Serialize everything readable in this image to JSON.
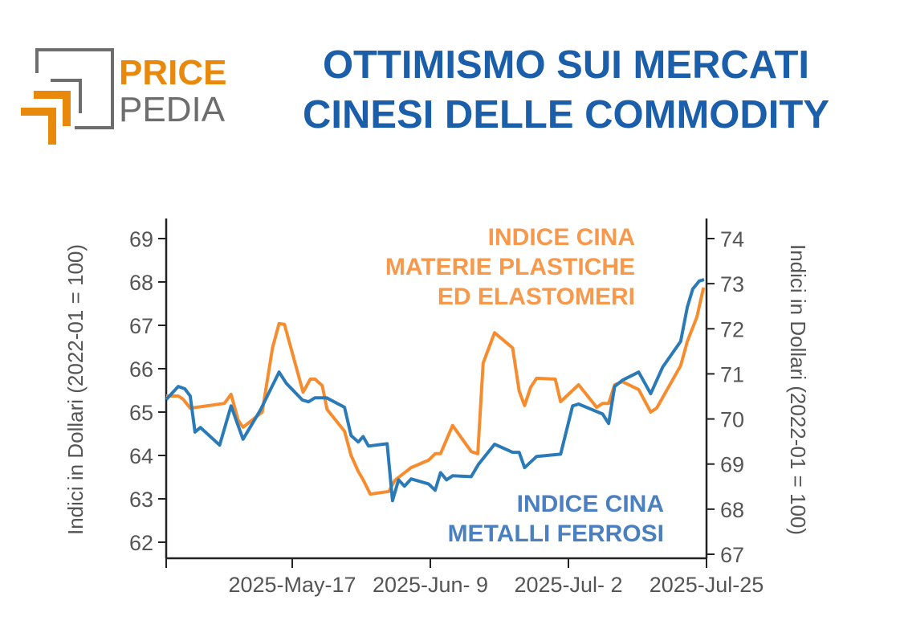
{
  "logo": {
    "line1": "PRICE",
    "line2": "PEDIA"
  },
  "title": {
    "line1": "OTTIMISMO SUI MERCATI",
    "line2": "CINESI DELLE COMMODITY"
  },
  "colors": {
    "title": "#1b5faa",
    "orange": "#f78c2e",
    "blue": "#2a7ab8",
    "orange_label": "#f7984a",
    "blue_label": "#4a7fc0",
    "axis": "#222222"
  },
  "chart_data": {
    "type": "line",
    "title": "",
    "x_unit": "days since 2025-Apr-26",
    "xlim": [
      0,
      90
    ],
    "x_ticks": [
      {
        "day": 0,
        "label": ""
      },
      {
        "day": 21,
        "label": "2025-May-17"
      },
      {
        "day": 44,
        "label": "2025-Jun- 9"
      },
      {
        "day": 67,
        "label": "2025-Jul- 2"
      },
      {
        "day": 90,
        "label": "2025-Jul-25"
      }
    ],
    "y_left": {
      "label": "Indici in Dollari (2022-01 = 100)",
      "ylim": [
        62,
        69
      ],
      "ticks": [
        "62",
        "63",
        "64",
        "65",
        "66",
        "67",
        "68",
        "69"
      ]
    },
    "y_right": {
      "label": "Indici in Dollari (2022-01 = 100)",
      "ylim": [
        67,
        74
      ],
      "ticks": [
        "67",
        "68",
        "69",
        "70",
        "71",
        "72",
        "73",
        "74"
      ]
    },
    "grid": false,
    "series": [
      {
        "name": "INDICE CINA MATERIE PLASTICHE ED ELASTOMERI",
        "label_lines": [
          "INDICE CINA",
          "MATERIE PLASTICHE",
          "ED  ELASTOMERI"
        ],
        "axis": "left",
        "color": "#f78c2e",
        "points": [
          [
            0,
            65.37
          ],
          [
            2,
            65.37
          ],
          [
            2.8,
            65.3
          ],
          [
            4,
            65.09
          ],
          [
            9.7,
            65.2
          ],
          [
            10.8,
            65.41
          ],
          [
            12,
            64.81
          ],
          [
            12.8,
            64.65
          ],
          [
            16,
            65.0
          ],
          [
            17.7,
            66.48
          ],
          [
            18.8,
            67.04
          ],
          [
            19.7,
            67.02
          ],
          [
            22.8,
            65.46
          ],
          [
            24,
            65.76
          ],
          [
            24.8,
            65.76
          ],
          [
            26,
            65.61
          ],
          [
            26.8,
            65.06
          ],
          [
            29.7,
            64.56
          ],
          [
            30.8,
            64.0
          ],
          [
            32,
            63.63
          ],
          [
            32.8,
            63.44
          ],
          [
            34,
            63.11
          ],
          [
            37.1,
            63.17
          ],
          [
            38.1,
            63.43
          ],
          [
            40.8,
            63.72
          ],
          [
            43.7,
            63.89
          ],
          [
            44.8,
            64.04
          ],
          [
            45.7,
            64.04
          ],
          [
            47.7,
            64.69
          ],
          [
            50.8,
            64.09
          ],
          [
            51.9,
            64.04
          ],
          [
            52.8,
            66.13
          ],
          [
            54.7,
            66.83
          ],
          [
            57.7,
            66.48
          ],
          [
            58.8,
            65.48
          ],
          [
            59.7,
            65.15
          ],
          [
            60.7,
            65.57
          ],
          [
            61.7,
            65.78
          ],
          [
            64.8,
            65.76
          ],
          [
            65.7,
            65.24
          ],
          [
            68.7,
            65.63
          ],
          [
            71.7,
            65.11
          ],
          [
            72.7,
            65.2
          ],
          [
            73.7,
            65.2
          ],
          [
            74.7,
            65.63
          ],
          [
            76,
            65.7
          ],
          [
            78.7,
            65.52
          ],
          [
            80.7,
            65.0
          ],
          [
            81.7,
            65.09
          ],
          [
            85.7,
            66.07
          ],
          [
            86.8,
            66.63
          ],
          [
            88.4,
            67.19
          ],
          [
            89.5,
            67.87
          ]
        ]
      },
      {
        "name": "INDICE CINA METALLI FERROSI",
        "label_lines": [
          "INDICE CINA",
          "METALLI FERROSI"
        ],
        "axis": "right",
        "color": "#2a7ab8",
        "points": [
          [
            0,
            70.43
          ],
          [
            2,
            70.72
          ],
          [
            3.1,
            70.67
          ],
          [
            4,
            70.51
          ],
          [
            4.8,
            69.71
          ],
          [
            5.7,
            69.81
          ],
          [
            8.9,
            69.42
          ],
          [
            10.8,
            70.29
          ],
          [
            12.8,
            69.55
          ],
          [
            15.7,
            70.2
          ],
          [
            18.8,
            71.04
          ],
          [
            20,
            70.79
          ],
          [
            22.7,
            70.42
          ],
          [
            23.7,
            70.38
          ],
          [
            24.8,
            70.47
          ],
          [
            26.7,
            70.47
          ],
          [
            29.7,
            70.26
          ],
          [
            30.8,
            69.63
          ],
          [
            32,
            69.49
          ],
          [
            32.8,
            69.61
          ],
          [
            33.7,
            69.4
          ],
          [
            36.8,
            69.45
          ],
          [
            37.7,
            68.19
          ],
          [
            38.7,
            68.65
          ],
          [
            39.7,
            68.51
          ],
          [
            40.8,
            68.67
          ],
          [
            43.7,
            68.56
          ],
          [
            44.8,
            68.42
          ],
          [
            45.7,
            68.81
          ],
          [
            46.7,
            68.65
          ],
          [
            47.7,
            68.74
          ],
          [
            50.8,
            68.72
          ],
          [
            52,
            68.99
          ],
          [
            54.7,
            69.44
          ],
          [
            57.7,
            69.26
          ],
          [
            58.8,
            69.26
          ],
          [
            59.7,
            68.92
          ],
          [
            61.7,
            69.17
          ],
          [
            65.7,
            69.22
          ],
          [
            67.7,
            70.29
          ],
          [
            68.7,
            70.33
          ],
          [
            72.7,
            70.11
          ],
          [
            73.7,
            69.9
          ],
          [
            74.7,
            70.72
          ],
          [
            76,
            70.86
          ],
          [
            78.7,
            71.04
          ],
          [
            80.7,
            70.56
          ],
          [
            82.7,
            71.15
          ],
          [
            85.7,
            71.72
          ],
          [
            86.8,
            72.48
          ],
          [
            87.7,
            72.88
          ],
          [
            88.8,
            73.06
          ],
          [
            89.6,
            73.09
          ]
        ]
      }
    ]
  }
}
